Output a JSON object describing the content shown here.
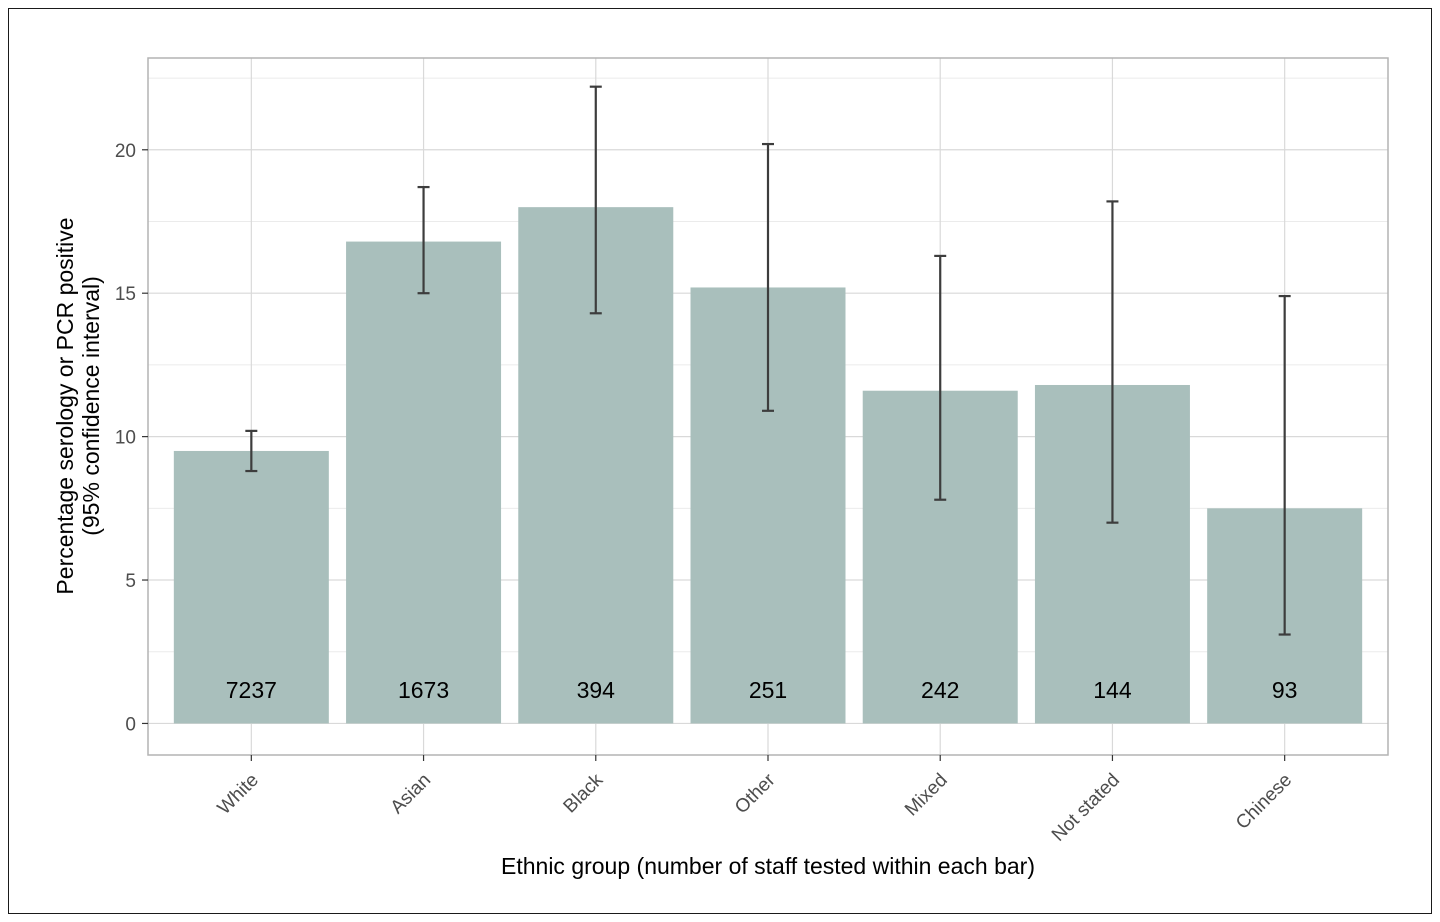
{
  "chart_data": {
    "type": "bar",
    "xlabel": "Ethnic group (number of staff tested within each bar)",
    "ylabel_line1": "Percentage serology or PCR positive",
    "ylabel_line2": "(95% confidence interval)",
    "categories": [
      "White",
      "Asian",
      "Black",
      "Other",
      "Mixed",
      "Not stated",
      "Chinese"
    ],
    "values": [
      9.5,
      16.8,
      18.0,
      15.2,
      11.6,
      11.8,
      7.5
    ],
    "ci_lower": [
      8.8,
      15.0,
      14.3,
      10.9,
      7.8,
      7.0,
      3.1
    ],
    "ci_upper": [
      10.2,
      18.7,
      22.2,
      20.2,
      16.3,
      18.2,
      14.9
    ],
    "counts": [
      "7237",
      "1673",
      "394",
      "251",
      "242",
      "144",
      "93"
    ],
    "ylim": [
      -1.1,
      23.2
    ],
    "y_ticks": [
      0,
      5,
      10,
      15,
      20
    ],
    "grid": true,
    "legend": "none",
    "colors": {
      "bar": "#a9bfbc",
      "errorbar": "#3d3d3d",
      "grid": "#d9d9d9",
      "panel_border": "#b3b3b3"
    }
  }
}
